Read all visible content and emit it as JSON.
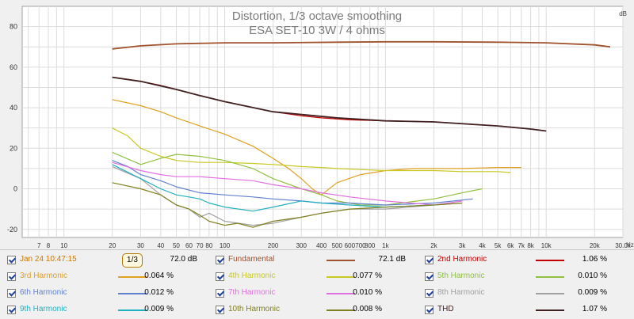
{
  "chart_data": {
    "type": "line",
    "title": "Distortion, 1/3 octave smoothing",
    "subtitle": "ESA SET-10 3W / 4 ohms",
    "ylabel": "dB",
    "xunit": "Hz",
    "xscale": "log",
    "xlim": [
      5.5,
      30000
    ],
    "ylim": [
      -24,
      90
    ],
    "grid": true,
    "yticks": [
      -20,
      0,
      20,
      40,
      60,
      80
    ],
    "xticks": [
      {
        "v": 7,
        "t": "7"
      },
      {
        "v": 8,
        "t": "8"
      },
      {
        "v": 10,
        "t": "10"
      },
      {
        "v": 20,
        "t": "20"
      },
      {
        "v": 30,
        "t": "30"
      },
      {
        "v": 40,
        "t": "40"
      },
      {
        "v": 50,
        "t": "50"
      },
      {
        "v": 60,
        "t": "60"
      },
      {
        "v": 70,
        "t": "70"
      },
      {
        "v": 80,
        "t": "80"
      },
      {
        "v": 100,
        "t": "100"
      },
      {
        "v": 200,
        "t": "200"
      },
      {
        "v": 300,
        "t": "300"
      },
      {
        "v": 400,
        "t": "400"
      },
      {
        "v": 500,
        "t": "500"
      },
      {
        "v": 600,
        "t": "600"
      },
      {
        "v": 700,
        "t": "700"
      },
      {
        "v": 800,
        "t": "800"
      },
      {
        "v": 1000,
        "t": "1k"
      },
      {
        "v": 2000,
        "t": "2k"
      },
      {
        "v": 3000,
        "t": "3k"
      },
      {
        "v": 4000,
        "t": "4k"
      },
      {
        "v": 5000,
        "t": "5k"
      },
      {
        "v": 6000,
        "t": "6k"
      },
      {
        "v": 7000,
        "t": "7k"
      },
      {
        "v": 8000,
        "t": "8k"
      },
      {
        "v": 10000,
        "t": "10k"
      },
      {
        "v": 20000,
        "t": "20k"
      },
      {
        "v": 30000,
        "t": "30.0k"
      }
    ],
    "series": [
      {
        "name": "Fundamental",
        "color": "#a0522d",
        "x": [
          20,
          30,
          50,
          100,
          200,
          500,
          1000,
          2000,
          5000,
          10000,
          20000,
          25000
        ],
        "values": [
          69,
          70.5,
          71.5,
          72,
          72,
          72.3,
          72.5,
          72.5,
          72.3,
          72,
          71,
          70
        ]
      },
      {
        "name": "2nd Harmonic",
        "color": "#c00000",
        "x": [
          20,
          25,
          30,
          40,
          50,
          70,
          100,
          150,
          200,
          300,
          400,
          600,
          1000,
          2000,
          5000,
          8000,
          10000
        ],
        "values": [
          55,
          54,
          53,
          51,
          49,
          46,
          43,
          40,
          38,
          36,
          35,
          34,
          33.5,
          33,
          31,
          29.5,
          28.5
        ]
      },
      {
        "name": "3rd Harmonic",
        "color": "#e0a020",
        "x": [
          20,
          30,
          40,
          50,
          70,
          100,
          150,
          200,
          250,
          300,
          350,
          400,
          500,
          700,
          1000,
          1500,
          2000,
          3000,
          5000,
          7000
        ],
        "values": [
          44,
          41,
          38,
          35,
          31,
          27,
          21,
          15,
          10,
          5,
          0,
          -3,
          3,
          7,
          9,
          10,
          10,
          10,
          10.5,
          10.5
        ]
      },
      {
        "name": "4th Harmonic",
        "color": "#c8c820",
        "x": [
          20,
          25,
          30,
          40,
          50,
          70,
          100,
          150,
          200,
          300,
          400,
          500,
          700,
          1000,
          2000,
          3000,
          5000,
          6000
        ],
        "values": [
          30,
          26,
          20,
          16,
          14,
          13,
          13,
          12.5,
          12,
          11,
          10.5,
          10,
          9.5,
          9,
          9,
          8.5,
          8.5,
          8
        ]
      },
      {
        "name": "5th Harmonic",
        "color": "#90c040",
        "x": [
          20,
          30,
          40,
          50,
          70,
          100,
          150,
          200,
          300,
          400,
          500,
          700,
          1000,
          2000,
          3000,
          4000
        ],
        "values": [
          18,
          12,
          15,
          17,
          16,
          14,
          10,
          5,
          0,
          -3,
          -6,
          -8,
          -8,
          -5,
          -2,
          0
        ]
      },
      {
        "name": "6th Harmonic",
        "color": "#6080d0",
        "x": [
          20,
          25,
          30,
          40,
          50,
          70,
          100,
          150,
          200,
          300,
          400,
          600,
          1000,
          2000,
          3500
        ],
        "values": [
          14,
          11,
          7,
          4,
          1,
          -2,
          -3,
          -4,
          -5,
          -6,
          -7,
          -7,
          -8,
          -7,
          -5
        ]
      },
      {
        "name": "7th Harmonic",
        "color": "#e070e0",
        "x": [
          20,
          30,
          40,
          50,
          70,
          100,
          150,
          200,
          300,
          400,
          600,
          1000,
          2000,
          3000
        ],
        "values": [
          13,
          9,
          7,
          6,
          6,
          5,
          4,
          2,
          0,
          -2,
          -4,
          -6,
          -8,
          -6
        ]
      },
      {
        "name": "8th Harmonic",
        "color": "#a0a0a0",
        "x": [
          20,
          30,
          40,
          50,
          60,
          70,
          80,
          100,
          150,
          200,
          300,
          400,
          600,
          1000,
          2000,
          3000
        ],
        "values": [
          11,
          5,
          -3,
          -8,
          -10,
          -14,
          -12,
          -16,
          -18,
          -17,
          -14,
          -12,
          -10,
          -10,
          -8,
          -7
        ]
      },
      {
        "name": "9th Harmonic",
        "color": "#20b0c0",
        "x": [
          20,
          30,
          40,
          50,
          60,
          70,
          80,
          100,
          150,
          200,
          300,
          400,
          600,
          1000,
          2000
        ],
        "values": [
          12,
          5,
          0,
          -3,
          -4,
          -5,
          -7,
          -9,
          -11,
          -9,
          -6,
          -7,
          -8,
          -9,
          -8
        ]
      },
      {
        "name": "10th Harmonic",
        "color": "#808020",
        "x": [
          20,
          30,
          40,
          50,
          60,
          70,
          80,
          100,
          120,
          150,
          200,
          300,
          400,
          600,
          1000,
          2000,
          3000
        ],
        "values": [
          3,
          0,
          -3,
          -8,
          -10,
          -13,
          -16,
          -18,
          -17,
          -19,
          -16,
          -14,
          -12,
          -10,
          -9,
          -8,
          -7
        ]
      },
      {
        "name": "THD",
        "color": "#402020",
        "x": [
          20,
          30,
          50,
          70,
          100,
          200,
          500,
          1000,
          2000,
          5000,
          8000,
          10000
        ],
        "values": [
          55,
          53,
          49,
          46,
          43,
          38,
          35,
          33.5,
          33,
          31,
          29.5,
          28.5
        ]
      }
    ]
  },
  "legend": {
    "rows": [
      [
        {
          "label": "Jan 24 10:47:15",
          "value": "72.0 dB",
          "color": "#c87800",
          "smoothing": "1/3"
        },
        {
          "label": "Fundamental",
          "value": "72.1 dB",
          "color": "#a0522d"
        },
        {
          "label": "2nd Harmonic",
          "value": "1.06 %",
          "color": "#c00000"
        }
      ],
      [
        {
          "label": "3rd Harmonic",
          "value": "0.064 %",
          "color": "#e0a020"
        },
        {
          "label": "4th Harmonic",
          "value": "0.077 %",
          "color": "#c8c820"
        },
        {
          "label": "5th Harmonic",
          "value": "0.010 %",
          "color": "#90c040"
        }
      ],
      [
        {
          "label": "6th Harmonic",
          "value": "0.012 %",
          "color": "#6080d0"
        },
        {
          "label": "7th Harmonic",
          "value": "0.010 %",
          "color": "#e070e0"
        },
        {
          "label": "8th Harmonic",
          "value": "0.009 %",
          "color": "#a0a0a0"
        }
      ],
      [
        {
          "label": "9th Harmonic",
          "value": "0.009 %",
          "color": "#20b0c0"
        },
        {
          "label": "10th Harmonic",
          "value": "0.008 %",
          "color": "#808020"
        },
        {
          "label": "THD",
          "value": "1.07 %",
          "color": "#402020"
        }
      ]
    ]
  }
}
